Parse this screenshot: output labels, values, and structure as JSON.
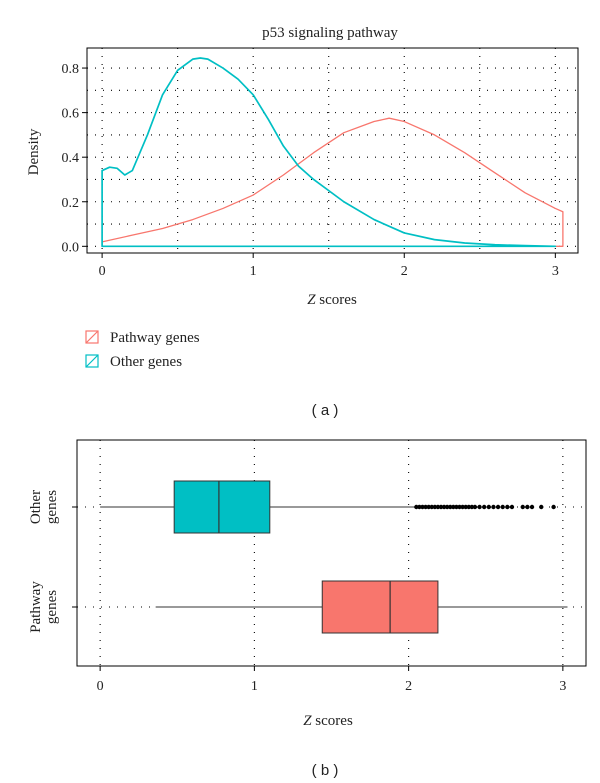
{
  "chart_data": [
    {
      "type": "area",
      "title": "p53 signaling pathway",
      "xlabel_italic": "Z",
      "xlabel_rest": " scores",
      "ylabel": "Density",
      "xlim": [
        -0.1,
        3.15
      ],
      "ylim": [
        -0.03,
        0.89
      ],
      "x_ticks": [
        0,
        1,
        2,
        3
      ],
      "x_tick_labels": [
        "0",
        "1",
        "2",
        "3"
      ],
      "y_ticks": [
        0.0,
        0.2,
        0.4,
        0.6,
        0.8
      ],
      "y_tick_labels": [
        "0.0",
        "0.2",
        "0.4",
        "0.6",
        "0.8"
      ],
      "grid": true,
      "legend_placement": "bottom-left",
      "series": [
        {
          "name": "Pathway genes",
          "color": "#F8766D",
          "x": [
            0.0,
            0.2,
            0.4,
            0.6,
            0.8,
            1.0,
            1.2,
            1.4,
            1.6,
            1.8,
            1.9,
            2.0,
            2.2,
            2.4,
            2.6,
            2.8,
            3.0,
            3.05
          ],
          "y": [
            0.02,
            0.05,
            0.08,
            0.12,
            0.17,
            0.23,
            0.32,
            0.42,
            0.51,
            0.56,
            0.575,
            0.56,
            0.5,
            0.42,
            0.33,
            0.24,
            0.17,
            0.155
          ]
        },
        {
          "name": "Other genes",
          "color": "#00BFC4",
          "x": [
            0.0,
            0.05,
            0.1,
            0.15,
            0.2,
            0.3,
            0.4,
            0.5,
            0.6,
            0.65,
            0.7,
            0.8,
            0.9,
            1.0,
            1.1,
            1.2,
            1.3,
            1.4,
            1.6,
            1.8,
            2.0,
            2.2,
            2.4,
            2.6,
            2.8,
            3.0
          ],
          "y": [
            0.34,
            0.355,
            0.35,
            0.32,
            0.34,
            0.5,
            0.68,
            0.79,
            0.84,
            0.845,
            0.84,
            0.8,
            0.75,
            0.68,
            0.57,
            0.45,
            0.36,
            0.3,
            0.2,
            0.12,
            0.06,
            0.03,
            0.015,
            0.007,
            0.003,
            0.0
          ]
        }
      ]
    },
    {
      "type": "box",
      "xlabel_italic": "Z",
      "xlabel_rest": " scores",
      "xlim": [
        -0.15,
        3.15
      ],
      "x_ticks": [
        0,
        1,
        2,
        3
      ],
      "x_tick_labels": [
        "0",
        "1",
        "2",
        "3"
      ],
      "grid": true,
      "groups": [
        {
          "label": "Other\ngenes",
          "color": "#00BFC4",
          "whisker_low": 0.0,
          "q1": 0.48,
          "median": 0.77,
          "q3": 1.1,
          "whisker_high": 2.04,
          "outliers": [
            2.05,
            2.07,
            2.09,
            2.11,
            2.13,
            2.15,
            2.17,
            2.19,
            2.21,
            2.23,
            2.25,
            2.27,
            2.29,
            2.31,
            2.33,
            2.35,
            2.37,
            2.39,
            2.41,
            2.43,
            2.46,
            2.49,
            2.52,
            2.55,
            2.58,
            2.61,
            2.64,
            2.67,
            2.74,
            2.77,
            2.8,
            2.86,
            2.94
          ]
        },
        {
          "label": "Pathway\ngenes",
          "color": "#F8766D",
          "whisker_low": 0.36,
          "q1": 1.44,
          "median": 1.88,
          "q3": 2.19,
          "whisker_high": 3.03,
          "outliers": []
        }
      ]
    }
  ],
  "captions": {
    "a": "( a )",
    "b": "( b )"
  }
}
